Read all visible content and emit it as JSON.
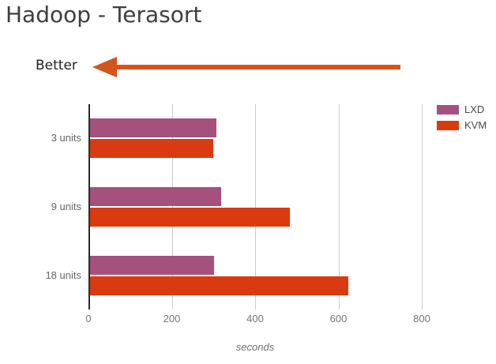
{
  "page": {
    "title": "Hadoop - Terasort",
    "better_label": "Better",
    "xlabel": "seconds"
  },
  "colors": {
    "title_text": "#3e3e42",
    "arrow": "#d4541c",
    "lxd": "#a4517e",
    "kvm": "#d93a10",
    "axis": "#2a2a2a",
    "gridline": "#cccccc",
    "tick_text": "#757575",
    "category_text": "#666666",
    "legend_text": "#4a4a4a"
  },
  "chart_data": {
    "type": "bar",
    "orientation": "horizontal",
    "title": "Hadoop - Terasort",
    "categories": [
      "3 units",
      "9 units",
      "18 units"
    ],
    "series": [
      {
        "name": "LXD",
        "color": "#a4517e",
        "values": [
          303,
          315,
          298
        ]
      },
      {
        "name": "KVM",
        "color": "#d93a10",
        "values": [
          295,
          480,
          620
        ]
      }
    ],
    "xlabel": "seconds",
    "xlim": [
      0,
      800
    ],
    "xticks": [
      0,
      200,
      400,
      600,
      800
    ],
    "grid": true,
    "legend_position": "top-right",
    "annotation": {
      "text": "Better",
      "direction": "left",
      "meaning": "lower is better"
    }
  }
}
